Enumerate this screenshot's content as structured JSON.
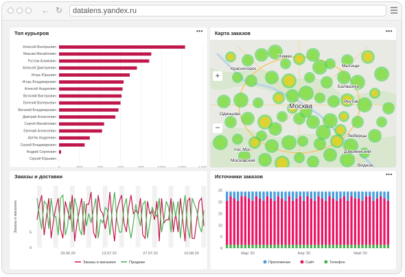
{
  "browser": {
    "url": "datalens.yandex.ru",
    "more": "•••"
  },
  "panels": {
    "couriers": {
      "title": "Топ курьеров"
    },
    "map": {
      "title": "Карта заказов",
      "zoom_in": "+",
      "zoom_out": "–",
      "places": [
        "Красногорск",
        "Химки",
        "Мытищи",
        "Балашиха",
        "Реутов",
        "Москва",
        "Одинцово",
        "Люберцы",
        "Дзержинский",
        "пос.Мос",
        "Московский",
        "Видное"
      ]
    },
    "orders": {
      "title": "Заказы и доставки"
    },
    "sources": {
      "title": "Источники заказов"
    }
  },
  "colors": {
    "accent": "#c0174b",
    "green": "#4caf50",
    "blue": "#4a9bda",
    "pink": "#ec1565"
  },
  "chart_data": [
    {
      "type": "bar",
      "title": "Топ курьеров",
      "categories": [
        "Алексей Валерьевич",
        "Максим Михайлович",
        "Рустам Алимович",
        "Алексей Дмитриевич",
        "Игорь Юрьевич",
        "Игорь Владимирович",
        "Алексей Андреевич",
        "Виталий Викторович",
        "Евгений Валерьевич",
        "Виталий Владимирович",
        "Дмитрий Алексеевич",
        "Сергей Михайлович",
        "Евгений Алексеевич",
        "Артём Андреевич",
        "Сергей Владимирович",
        "Андрей Сергеевич",
        "Сергей Юрьевич"
      ],
      "values": [
        1230,
        900,
        880,
        760,
        690,
        630,
        620,
        610,
        600,
        580,
        550,
        440,
        420,
        300,
        250,
        20,
        0
      ],
      "xticks": [
        "0",
        "200",
        "400",
        "600",
        "800",
        "1000",
        "1200",
        "1400"
      ],
      "xlim": [
        0,
        1400
      ]
    },
    {
      "type": "line",
      "title": "Заказы и доставки",
      "ylabel": "Заказы в магазине",
      "yticks": [
        "0",
        "5"
      ],
      "xticks": [
        "29.06.20",
        "13.07.20",
        "27.07.20",
        "10.08.20"
      ],
      "series": [
        {
          "name": "Заказы в магазине",
          "color": "#c0174b",
          "values": [
            9,
            14,
            17,
            4,
            10,
            16,
            3,
            9,
            13,
            16,
            6,
            3,
            15,
            12,
            9,
            17,
            2,
            8,
            12,
            16,
            4,
            14,
            14,
            18,
            5,
            3,
            17,
            12,
            11,
            6,
            10,
            18,
            8,
            2,
            12,
            15,
            17,
            8,
            5,
            13,
            17,
            11,
            12,
            11,
            16,
            4,
            3,
            15,
            11,
            12,
            9,
            15,
            2,
            16,
            8,
            9,
            9,
            16,
            5,
            11,
            5,
            16,
            9,
            2,
            15,
            16,
            3,
            3,
            9,
            15,
            16,
            7
          ]
        },
        {
          "name": "Продажи",
          "color": "#4caf50",
          "values": [
            16,
            10,
            6,
            15,
            14,
            6,
            16,
            10,
            10,
            4,
            16,
            17,
            4,
            7,
            15,
            5,
            16,
            13,
            6,
            4,
            15,
            7,
            11,
            8,
            12,
            16,
            3,
            9,
            8,
            13,
            12,
            4,
            12,
            18,
            9,
            5,
            5,
            13,
            16,
            7,
            3,
            8,
            14,
            10,
            7,
            14,
            15,
            3,
            8,
            13,
            11,
            10,
            16,
            5,
            9,
            15,
            13,
            5,
            15,
            10,
            15,
            3,
            11,
            17,
            7,
            3,
            16,
            14,
            12,
            7,
            5,
            12
          ]
        }
      ]
    },
    {
      "type": "bar",
      "title": "Источники заказов",
      "stacked": true,
      "yticks": [
        "0",
        "5",
        "10",
        "15",
        "20",
        "25"
      ],
      "xticks": [
        "Мар '20",
        "Апр '20",
        "Май '20"
      ],
      "ylim": [
        0,
        27
      ],
      "series": [
        {
          "name": "Приложение",
          "color": "#4a9bda",
          "values": [
            4,
            2,
            3,
            4,
            2,
            2,
            3,
            4,
            2,
            3,
            4,
            2,
            3,
            4,
            2,
            3,
            4,
            2,
            4,
            3,
            2,
            4,
            2,
            3,
            4,
            2,
            3,
            4,
            2,
            3,
            4,
            3,
            2,
            4,
            2,
            3,
            3,
            4,
            2,
            2,
            4,
            3,
            2,
            3,
            4
          ]
        },
        {
          "name": "Сайт",
          "color": "#ec1565",
          "values": [
            19,
            21,
            20,
            19,
            21,
            21,
            20,
            19,
            21,
            20,
            19,
            21,
            20,
            19,
            21,
            20,
            19,
            21,
            19,
            20,
            21,
            19,
            21,
            20,
            19,
            21,
            20,
            19,
            21,
            20,
            19,
            20,
            21,
            19,
            21,
            20,
            20,
            19,
            21,
            21,
            19,
            20,
            21,
            20,
            19
          ]
        },
        {
          "name": "Телефон",
          "color": "#4caf50",
          "values": [
            1.5,
            1.5,
            1.5,
            1.5,
            1.5,
            1.5,
            1.5,
            1.5,
            1.5,
            1.5,
            1.5,
            1.5,
            1.5,
            1.5,
            1.5,
            1.5,
            1.5,
            1.5,
            1.5,
            1.5,
            1.5,
            1.5,
            1.5,
            1.5,
            1.5,
            1.5,
            1.5,
            1.5,
            1.5,
            1.5,
            1.5,
            1.5,
            1.5,
            1.5,
            1.5,
            1.5,
            1.5,
            1.5,
            1.5,
            1.5,
            1.5,
            1.5,
            1.5,
            1.5,
            1.5
          ]
        }
      ]
    }
  ]
}
